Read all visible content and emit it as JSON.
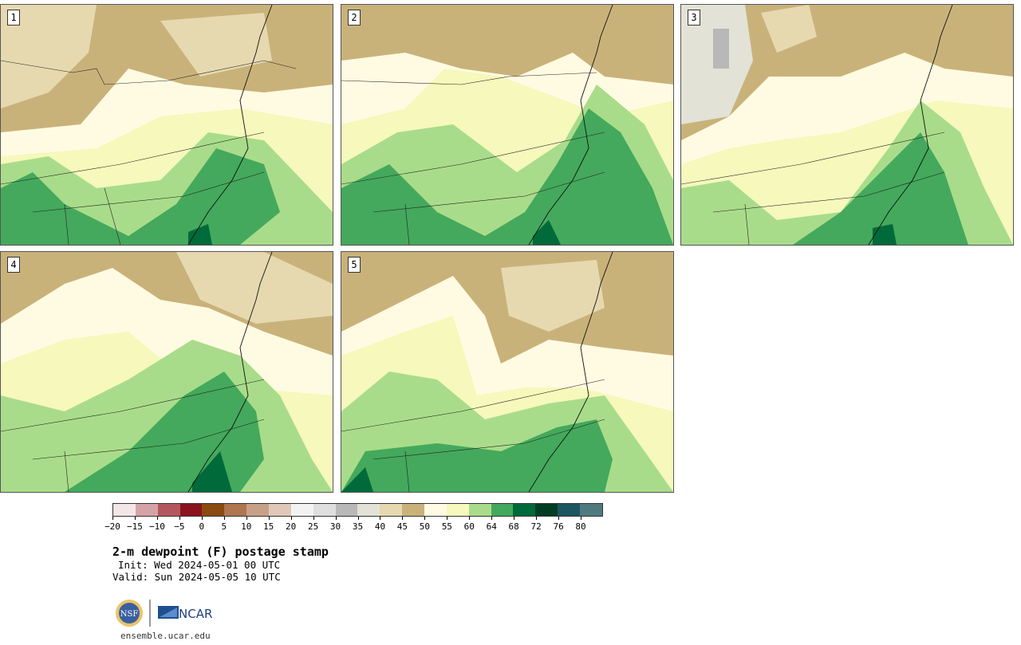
{
  "panels": [
    {
      "label": "1"
    },
    {
      "label": "2"
    },
    {
      "label": "3"
    },
    {
      "label": "4"
    },
    {
      "label": "5"
    }
  ],
  "colorbar": {
    "colors": [
      "#f2e6e6",
      "#d4a3a8",
      "#b3575f",
      "#8a1420",
      "#8a4a10",
      "#ad7550",
      "#c8a088",
      "#e0c8b8",
      "#f2f2f2",
      "#dedede",
      "#b8b8b8",
      "#e2e2d6",
      "#e6d9b0",
      "#c9b27a",
      "#fffbe2",
      "#f6f8bc",
      "#a9dc8a",
      "#44a95c",
      "#006a3a",
      "#003d24",
      "#1c5660",
      "#4f7a80"
    ],
    "tick_labels": [
      "−20",
      "−15",
      "−10",
      "−5",
      "0",
      "5",
      "10",
      "15",
      "20",
      "25",
      "30",
      "35",
      "40",
      "45",
      "50",
      "55",
      "60",
      "64",
      "68",
      "72",
      "76",
      "80"
    ]
  },
  "title": "2-m dewpoint (F) postage stamp",
  "init": "Init: Wed 2024-05-01 00 UTC",
  "valid": "Valid: Sun 2024-05-05 10 UTC",
  "logos": {
    "left": "NSF",
    "right": "NCAR"
  },
  "footer_url": "ensemble.ucar.edu"
}
